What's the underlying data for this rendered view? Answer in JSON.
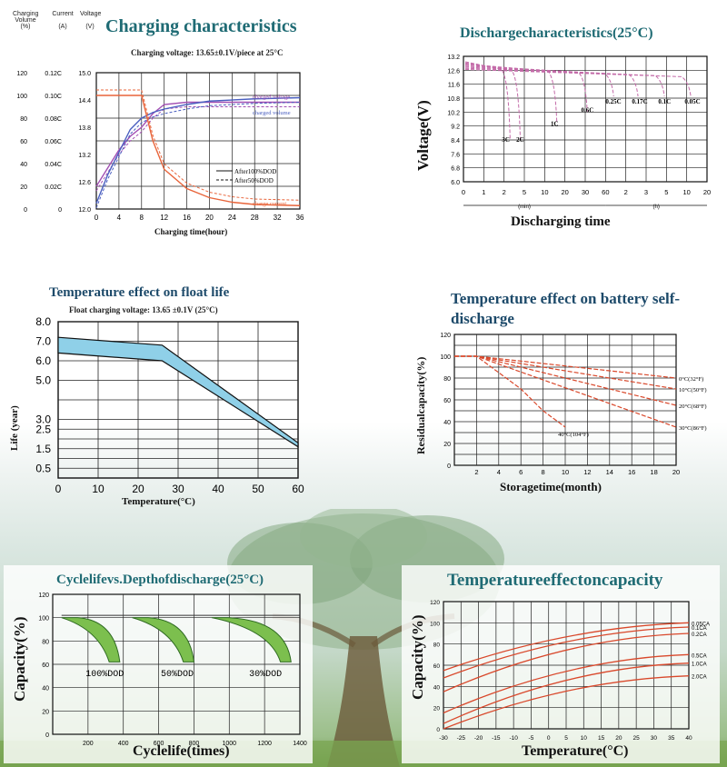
{
  "chart_data": [
    {
      "type": "line",
      "title": "Charging characteristics",
      "subtitle": "Charging voltage: 13.65±0.1V/piece at 25°C",
      "xlabel": "Charging time(hour)",
      "y_axes": [
        {
          "label": "Charging Volume (%)",
          "ticks": [
            "0",
            "20",
            "40",
            "60",
            "80",
            "100",
            "120"
          ]
        },
        {
          "label": "Current (A)",
          "ticks": [
            "0",
            "0.02C",
            "0.04C",
            "0.06C",
            "0.08C",
            "0.10C",
            "0.12C"
          ]
        },
        {
          "label": "Voltage (V)",
          "ticks": [
            "12.0",
            "12.6",
            "13.2",
            "13.8",
            "14.4",
            "15.0"
          ]
        }
      ],
      "x_ticks": [
        "0",
        "4",
        "8",
        "12",
        "16",
        "20",
        "24",
        "28",
        "32",
        "36"
      ],
      "series_labels": [
        "charged voltage",
        "charged volume",
        "charge current"
      ],
      "legend": [
        "After100%DOD",
        "After50%DOD"
      ],
      "series": [
        {
          "name": "voltage",
          "color": "#a24fb3",
          "x": [
            0,
            2,
            4,
            6,
            8,
            10,
            12,
            16,
            20,
            28,
            36
          ],
          "y": [
            12.5,
            12.9,
            13.3,
            13.6,
            13.8,
            14.1,
            14.3,
            14.35,
            14.35,
            14.35,
            14.35
          ]
        },
        {
          "name": "volume",
          "color": "#4a5fc0",
          "x": [
            0,
            2,
            4,
            6,
            8,
            10,
            12,
            16,
            20,
            28,
            36
          ],
          "y": [
            5,
            30,
            50,
            70,
            80,
            85,
            88,
            92,
            95,
            97,
            98
          ]
        },
        {
          "name": "current",
          "color": "#e8643a",
          "x": [
            0,
            4,
            6,
            8,
            10,
            12,
            16,
            20,
            24,
            28,
            36
          ],
          "y": [
            0.1,
            0.1,
            0.1,
            0.1,
            0.06,
            0.035,
            0.018,
            0.01,
            0.006,
            0.004,
            0.003
          ]
        }
      ]
    },
    {
      "type": "line",
      "title": "Dischargecharacteristics(25°C)",
      "ylabel": "Voltage(V)",
      "xlabel": "Discharging time",
      "y_ticks": [
        "6.0",
        "6.8",
        "7.6",
        "8.4",
        "9.2",
        "10.2",
        "10.8",
        "11.6",
        "12.6",
        "13.2"
      ],
      "x_ticks": [
        "0",
        "1",
        "2",
        "5",
        "10",
        "20",
        "30",
        "60",
        "2",
        "3",
        "5",
        "10",
        "20"
      ],
      "x_units": [
        "(min)",
        "(h)"
      ],
      "series_labels": [
        "3C",
        "2C",
        "1C",
        "0.6C",
        "0.25C",
        "0.17C",
        "0.1C",
        "0.05C"
      ]
    },
    {
      "type": "area",
      "title": "Temperature effect on float life",
      "subtitle": "Float charging voltage:  13.65 ±0.1V (25°C)",
      "xlabel": "Temperature(°C)",
      "ylabel": "Life (year)",
      "x_ticks": [
        "0",
        "10",
        "20",
        "30",
        "40",
        "50",
        "60"
      ],
      "y_ticks": [
        "0.5",
        "1.5",
        "2.5",
        "3.0",
        "5.0",
        "6.0",
        "7.0",
        "8.0"
      ],
      "xlim": [
        0,
        60
      ],
      "upper": {
        "x": [
          0,
          26,
          60
        ],
        "y": [
          7.2,
          6.8,
          1.8
        ]
      },
      "lower": {
        "x": [
          0,
          26,
          60
        ],
        "y": [
          6.4,
          6.0,
          1.6
        ]
      }
    },
    {
      "type": "line",
      "title": "Temperature effect on battery self-discharge",
      "xlabel": "Storagetime(month)",
      "ylabel": "Residualcapacity(%)",
      "x_ticks": [
        "2",
        "4",
        "6",
        "8",
        "10",
        "12",
        "14",
        "16",
        "18",
        "20"
      ],
      "y_ticks": [
        "0",
        "20",
        "40",
        "60",
        "80",
        "100",
        "120"
      ],
      "xlim": [
        0,
        20
      ],
      "ylim": [
        0,
        120
      ],
      "series": [
        {
          "name": "0°C(32°F)",
          "x": [
            0,
            2,
            20
          ],
          "y": [
            100,
            100,
            80
          ]
        },
        {
          "name": "10°C(50°F)",
          "x": [
            0,
            2,
            20
          ],
          "y": [
            100,
            100,
            70
          ]
        },
        {
          "name": "20°C(68°F)",
          "x": [
            0,
            2,
            20
          ],
          "y": [
            100,
            100,
            55
          ]
        },
        {
          "name": "30°C(86°F)",
          "x": [
            0,
            2,
            20
          ],
          "y": [
            100,
            100,
            35
          ]
        },
        {
          "name": "40°C(104°F)",
          "x": [
            0,
            2,
            4,
            6,
            8,
            10
          ],
          "y": [
            100,
            100,
            85,
            70,
            50,
            35
          ]
        }
      ]
    },
    {
      "type": "area",
      "title": "Cyclelifevs.Depthofdischarge(25°C)",
      "xlabel": "Cyclelife(times)",
      "ylabel": "Capacity(%)",
      "x_ticks": [
        "200",
        "400",
        "600",
        "800",
        "1000",
        "1200",
        "1400"
      ],
      "y_ticks": [
        "0",
        "20",
        "40",
        "60",
        "80",
        "100",
        "120"
      ],
      "series_labels": [
        "100%DOD",
        "50%DOD",
        "30%DOD"
      ]
    },
    {
      "type": "line",
      "title": "Temperatureeffectoncapacity",
      "xlabel": "Temperature(°C)",
      "ylabel": "Capacity(%)",
      "x_ticks": [
        "-30",
        "-25",
        "-20",
        "-15",
        "-10",
        "-5",
        "0",
        "5",
        "10",
        "15",
        "20",
        "25",
        "30",
        "35",
        "40"
      ],
      "y_ticks": [
        "0",
        "20",
        "40",
        "60",
        "80",
        "100",
        "120"
      ],
      "series_labels": [
        "0.05CA",
        "0.1CA",
        "0.2CA",
        "0.5CA",
        "1.0CA",
        "2.0CA"
      ]
    }
  ]
}
